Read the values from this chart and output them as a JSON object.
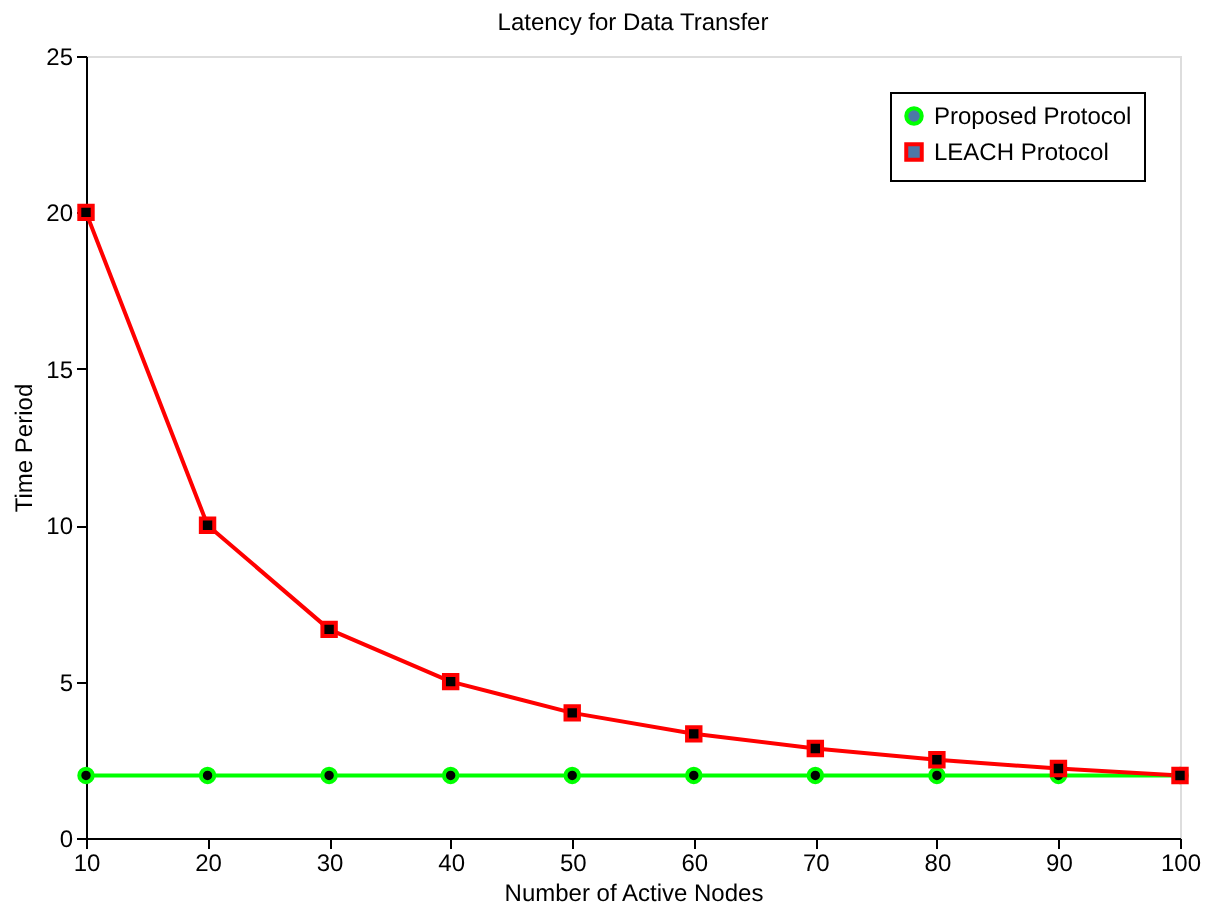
{
  "chart_data": {
    "type": "line",
    "title": "Latency for Data Transfer",
    "xlabel": "Number of Active Nodes",
    "ylabel": "Time Period",
    "x": [
      10,
      20,
      30,
      40,
      50,
      60,
      70,
      80,
      90,
      100
    ],
    "series": [
      {
        "name": "Proposed Protocol",
        "color": "#00ff00",
        "marker": "circle",
        "values": [
          2,
          2,
          2,
          2,
          2,
          2,
          2,
          2,
          2,
          2
        ]
      },
      {
        "name": "LEACH Protocol",
        "color": "#ff0000",
        "marker": "square",
        "values": [
          20,
          10,
          6.67,
          5,
          4,
          3.33,
          2.86,
          2.5,
          2.22,
          2
        ]
      }
    ],
    "xlim": [
      10,
      100
    ],
    "ylim": [
      0,
      25
    ],
    "xticks": [
      10,
      20,
      30,
      40,
      50,
      60,
      70,
      80,
      90,
      100
    ],
    "yticks": [
      0,
      5,
      10,
      15,
      20,
      25
    ],
    "grid": false,
    "legend": "top right",
    "line_style": "solid"
  }
}
